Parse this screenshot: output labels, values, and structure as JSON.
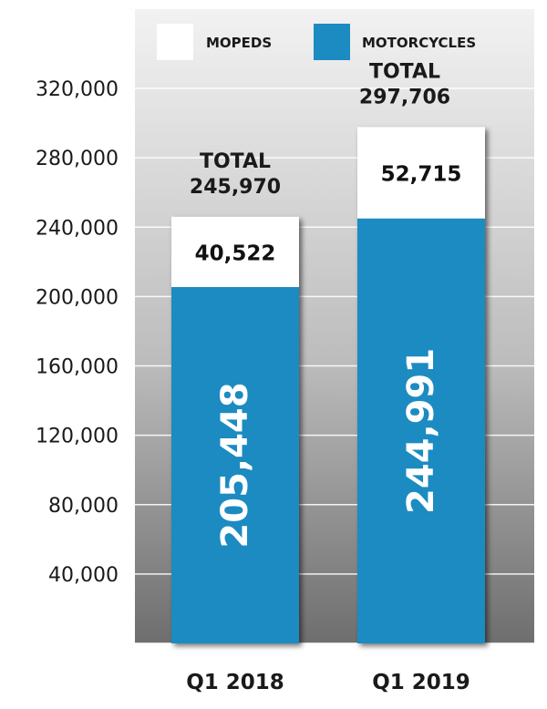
{
  "chart_data": {
    "type": "bar",
    "stacked": true,
    "categories": [
      "Q1 2018",
      "Q1 2019"
    ],
    "series": [
      {
        "name": "MOTORCYCLES",
        "values": [
          205448,
          244991
        ],
        "color": "#1b8bc2",
        "labels": [
          "205,448",
          "244,991"
        ]
      },
      {
        "name": "MOPEDS",
        "values": [
          40522,
          52715
        ],
        "color": "#ffffff",
        "labels": [
          "40,522",
          "52,715"
        ]
      }
    ],
    "totals": [
      {
        "line1": "TOTAL",
        "line2": "245,970",
        "value": 245970
      },
      {
        "line1": "TOTAL",
        "line2": "297,706",
        "value": 297706
      }
    ],
    "ylim": [
      0,
      320000
    ],
    "yticks": [
      40000,
      80000,
      120000,
      160000,
      200000,
      240000,
      280000,
      320000
    ],
    "ytick_labels": [
      "40,000",
      "80,000",
      "120,000",
      "160,000",
      "200,000",
      "240,000",
      "280,000",
      "320,000"
    ],
    "legend_position": "top",
    "grid": true,
    "background_gradient": [
      "#6e6e6e",
      "#cfcfcf",
      "#f4f4f4"
    ]
  }
}
